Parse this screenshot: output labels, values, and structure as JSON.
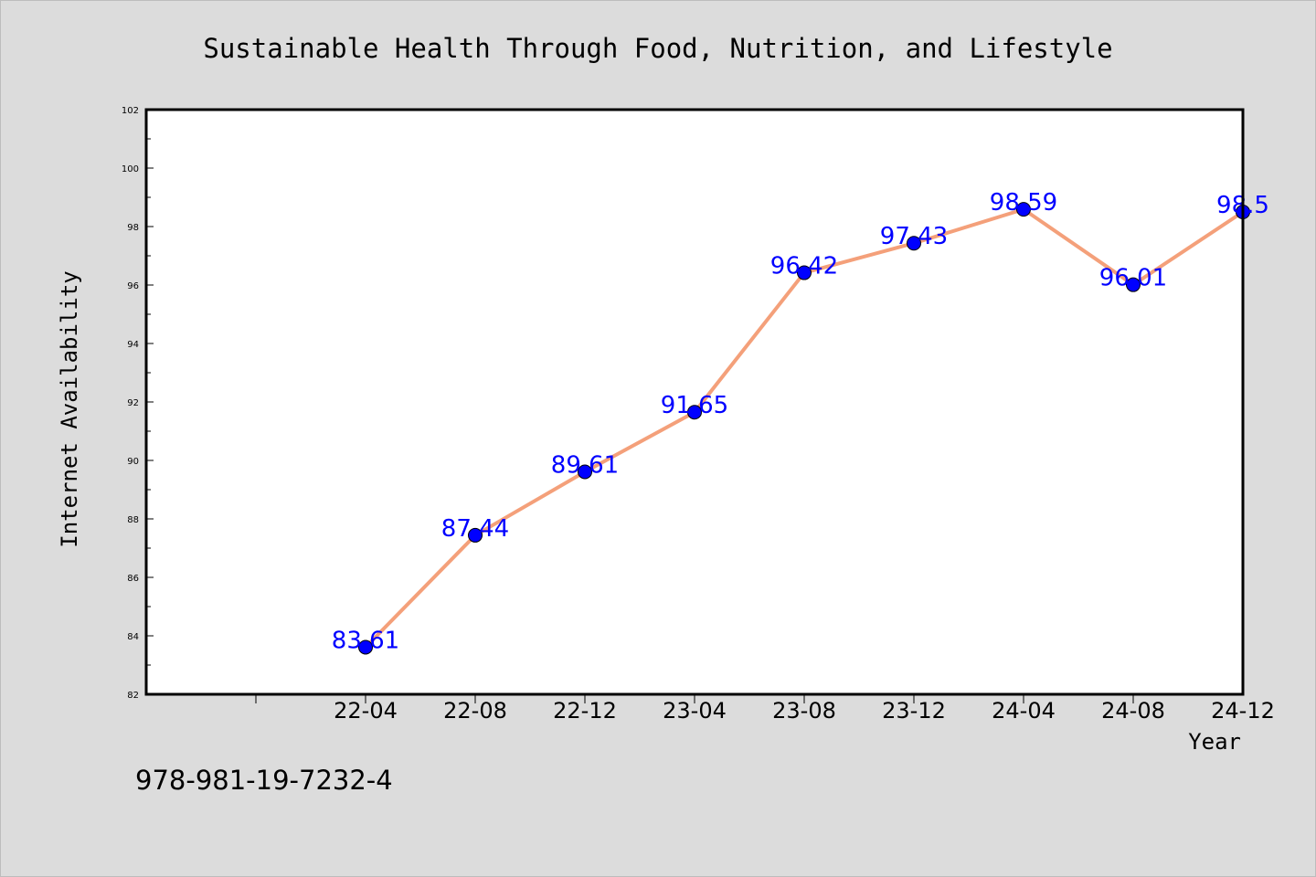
{
  "chart_data": {
    "type": "line",
    "title": "Sustainable Health Through Food, Nutrition, and Lifestyle",
    "xlabel": "Year",
    "ylabel": "Internet Availability",
    "categories": [
      "22-04",
      "22-08",
      "22-12",
      "23-04",
      "23-08",
      "23-12",
      "24-04",
      "24-08",
      "24-12"
    ],
    "series": [
      {
        "values": [
          83.61,
          87.44,
          89.61,
          91.65,
          96.42,
          97.43,
          98.59,
          96.01,
          98.5
        ],
        "data_labels": [
          "83.61",
          "87.44",
          "89.61",
          "91.65",
          "96.42",
          "97.43",
          "98.59",
          "96.01",
          "98.5"
        ],
        "line_color": "#f4a07a",
        "marker_color": "#0000ff",
        "label_color": "#0000ff"
      }
    ],
    "ylim": [
      82,
      102
    ],
    "yticks": [
      82,
      84,
      86,
      88,
      90,
      92,
      94,
      96,
      98,
      100,
      102
    ],
    "ytick_labels": [
      "82",
      "84",
      "86",
      "88",
      "90",
      "92",
      "94",
      "96",
      "98",
      "100",
      "102"
    ],
    "grid": false,
    "legend": "none"
  },
  "footer": {
    "isbn": "978-981-19-7232-4"
  },
  "colors": {
    "background": "#dcdcdc",
    "plot_background": "#ffffff"
  }
}
